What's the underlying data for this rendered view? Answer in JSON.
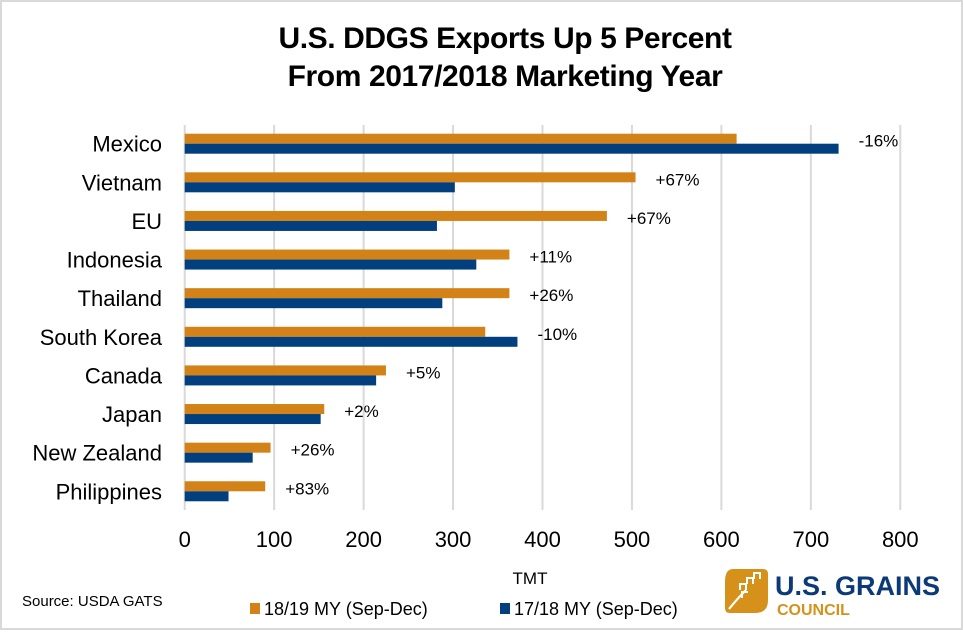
{
  "chart_data": {
    "type": "bar",
    "orientation": "horizontal",
    "title": "U.S. DDGS Exports Up 5 Percent From 2017/2018 Marketing Year",
    "title_lines": [
      "U.S. DDGS Exports Up 5 Percent",
      "From 2017/2018 Marketing Year"
    ],
    "xlabel": "TMT",
    "ylabel": "",
    "xlim": [
      0,
      800
    ],
    "x_ticks": [
      0,
      100,
      200,
      300,
      400,
      500,
      600,
      700,
      800
    ],
    "x_tick_labels": [
      "0",
      "100",
      "200",
      "300",
      "400",
      "500",
      "600",
      "700",
      "800"
    ],
    "grid": true,
    "legend_position": "bottom",
    "categories": [
      "Mexico",
      "Vietnam",
      "EU",
      "Indonesia",
      "Thailand",
      "South Korea",
      "Canada",
      "Japan",
      "New Zealand",
      "Philippines"
    ],
    "series": [
      {
        "name": "18/19 MY (Sep-Dec)",
        "color": "#d28216",
        "values": [
          617,
          504,
          472,
          363,
          363,
          336,
          225,
          156,
          96,
          90
        ]
      },
      {
        "name": "17/18 MY (Sep-Dec)",
        "color": "#023f7e",
        "values": [
          731,
          302,
          282,
          326,
          288,
          372,
          214,
          152,
          76,
          49
        ]
      }
    ],
    "annotations": [
      "-16%",
      "+67%",
      "+67%",
      "+11%",
      "+26%",
      "-10%",
      "+5%",
      "+2%",
      "+26%",
      "+83%"
    ],
    "source": "Source: USDA GATS"
  },
  "logo": {
    "name": "U.S. GRAINS",
    "sub": "COUNCIL",
    "icon": "grains-council-leaf-icon",
    "primary_color": "#0c3a78",
    "accent_color": "#d6911a"
  }
}
